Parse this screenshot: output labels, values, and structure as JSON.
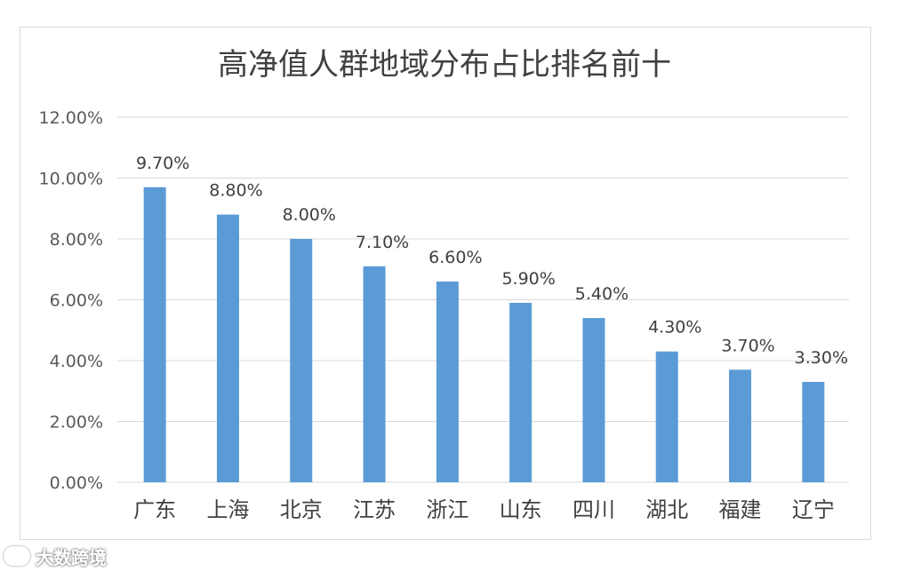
{
  "chart_data": {
    "type": "bar",
    "title": "高净值人群地域分布占比排名前十",
    "categories": [
      "广东",
      "上海",
      "北京",
      "江苏",
      "浙江",
      "山东",
      "四川",
      "湖北",
      "福建",
      "辽宁"
    ],
    "values": [
      9.7,
      8.8,
      8.0,
      7.1,
      6.6,
      5.9,
      5.4,
      4.3,
      3.7,
      3.3
    ],
    "data_labels": [
      "9.70%",
      "8.80%",
      "8.00%",
      "7.10%",
      "6.60%",
      "5.90%",
      "5.40%",
      "4.30%",
      "3.70%",
      "3.30%"
    ],
    "y_ticks": [
      0,
      2,
      4,
      6,
      8,
      10,
      12
    ],
    "y_tick_labels": [
      "0.00%",
      "2.00%",
      "4.00%",
      "6.00%",
      "8.00%",
      "10.00%",
      "12.00%"
    ],
    "ylim": [
      0,
      12
    ],
    "xlabel": "",
    "ylabel": "",
    "grid": true,
    "legend": "none",
    "bar_color": "#5b9bd5",
    "grid_color": "#d9d9d9"
  },
  "watermark": {
    "text": "大数跨境"
  }
}
